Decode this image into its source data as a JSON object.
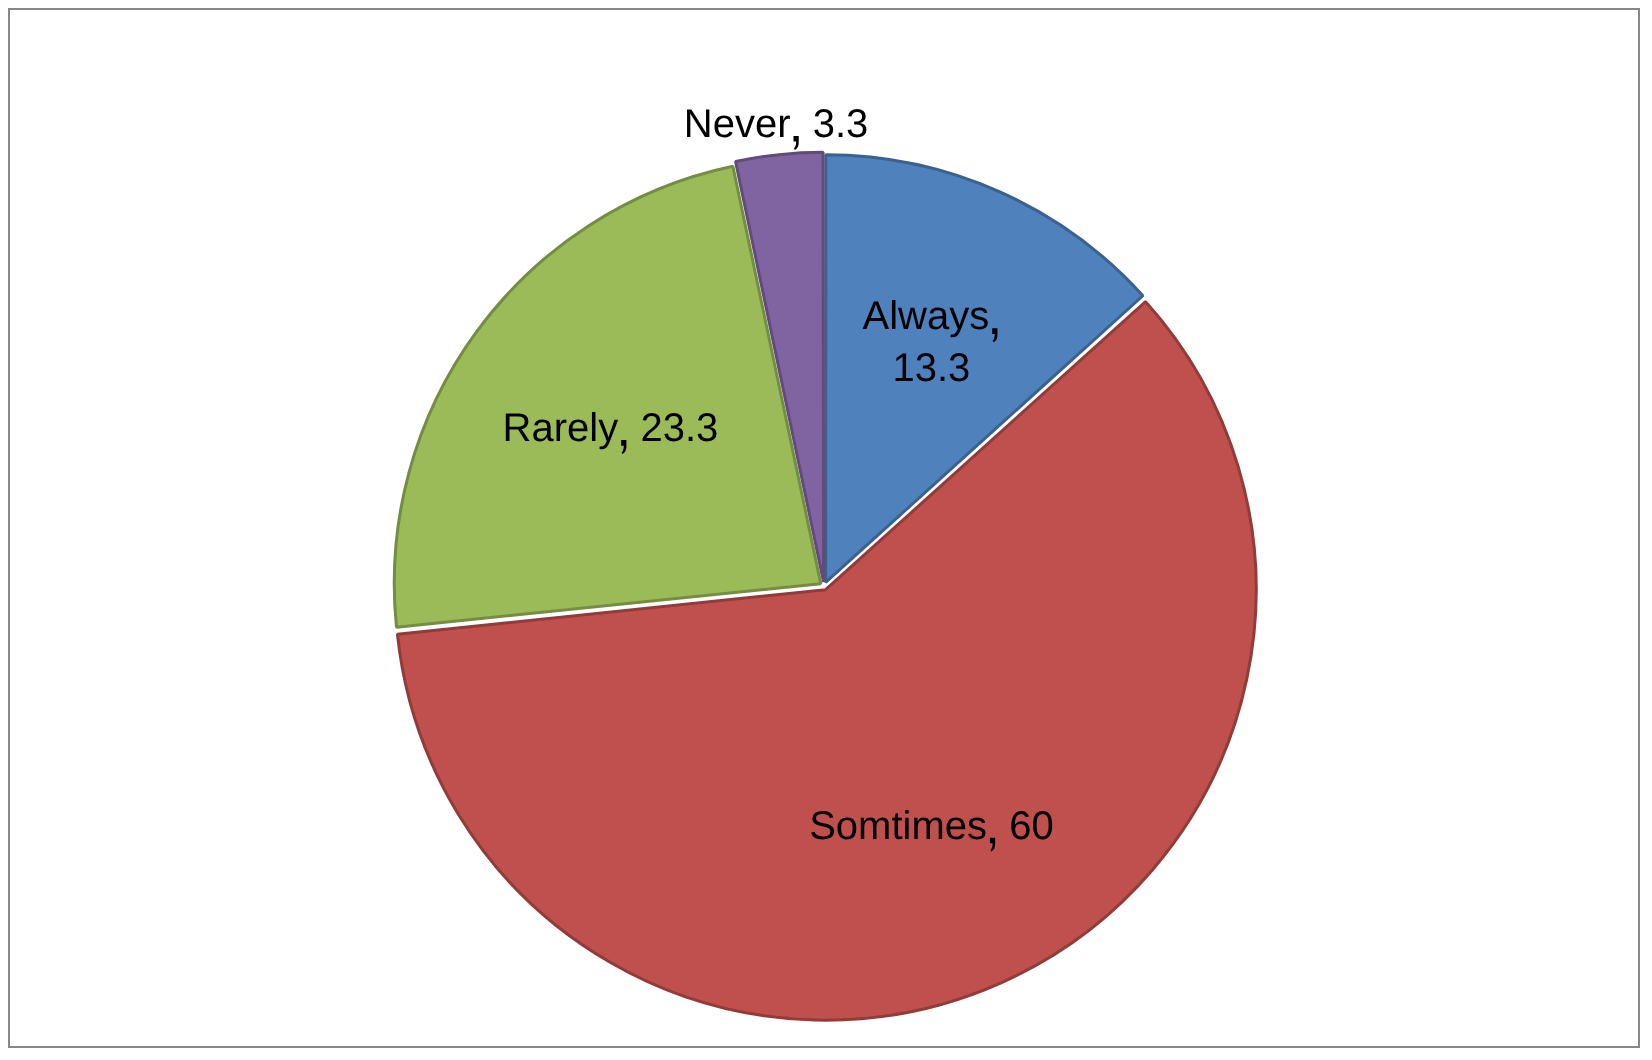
{
  "chart_data": {
    "type": "pie",
    "categories": [
      "Always",
      "Somtimes",
      "Rarely",
      "Never"
    ],
    "values": [
      13.3,
      60,
      23.3,
      3.3
    ],
    "colors": [
      "#4f81bd",
      "#c0504d",
      "#9bbb59",
      "#8064a2"
    ],
    "data_labels": true
  }
}
